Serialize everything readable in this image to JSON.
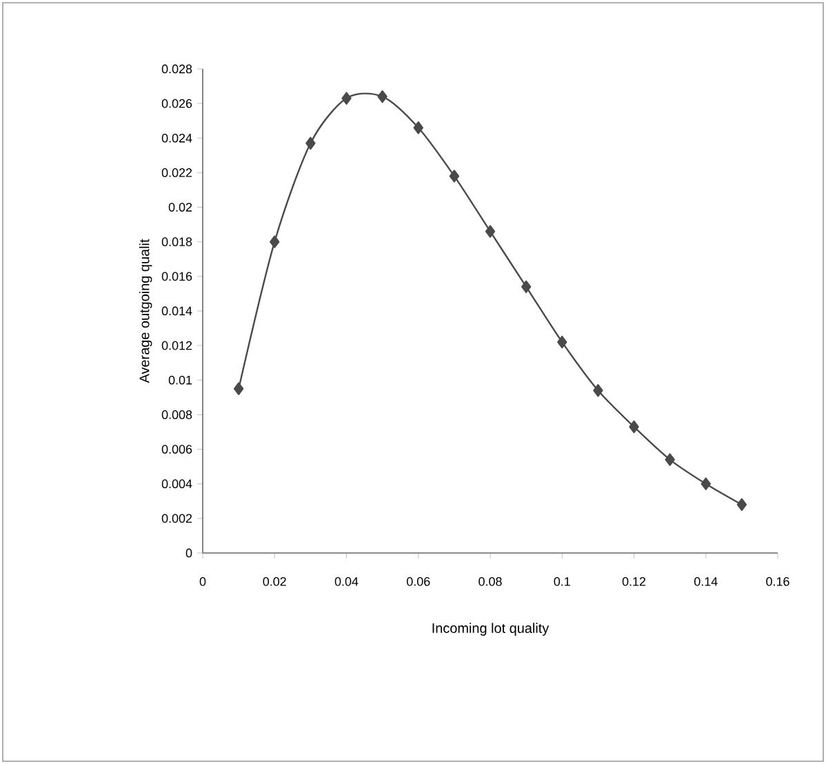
{
  "chart_data": {
    "type": "line",
    "xlabel": "Incoming lot quality",
    "ylabel": "Average outgoing qualit",
    "x": [
      0.01,
      0.02,
      0.03,
      0.04,
      0.05,
      0.06,
      0.07,
      0.08,
      0.09,
      0.1,
      0.11,
      0.12,
      0.13,
      0.14,
      0.15
    ],
    "series": [
      {
        "color": "#4a4a4a",
        "values": [
          0.0095,
          0.018,
          0.0237,
          0.0263,
          0.0264,
          0.0246,
          0.0218,
          0.0186,
          0.0154,
          0.0122,
          0.0094,
          0.0073,
          0.0054,
          0.004,
          0.0028
        ]
      }
    ],
    "xlim": [
      0,
      0.16
    ],
    "xticks": [
      0,
      0.02,
      0.04,
      0.06,
      0.08,
      0.1,
      0.12,
      0.14,
      0.16
    ],
    "ylim": [
      0,
      0.028
    ],
    "yticks": [
      0,
      0.002,
      0.004,
      0.006,
      0.008,
      0.01,
      0.012,
      0.014,
      0.016,
      0.018,
      0.02,
      0.022,
      0.024,
      0.026,
      0.028
    ],
    "marker": "diamond",
    "line_style": "solid"
  }
}
